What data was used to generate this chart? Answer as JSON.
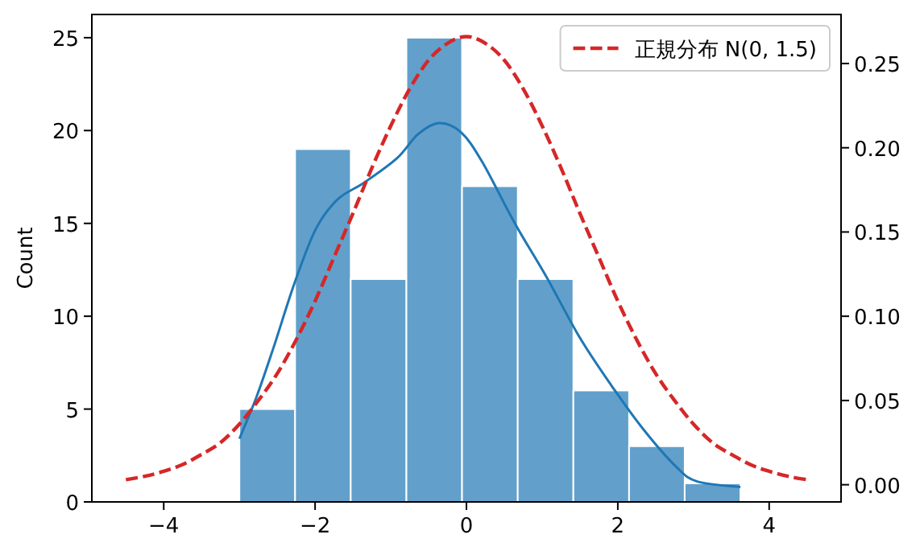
{
  "chart_data": {
    "type": "histogram",
    "ylabel": "Count",
    "bins": [
      -3.0,
      -2.264,
      -1.529,
      -0.793,
      -0.058,
      0.678,
      1.413,
      2.149,
      2.884,
      3.62
    ],
    "values": [
      5,
      19,
      12,
      25,
      17,
      12,
      6,
      3,
      1
    ],
    "color": "#62a0cb",
    "series": [
      {
        "type": "line",
        "color": "#1f77b4",
        "x": [
          -3.0,
          -2.77,
          -2.55,
          -2.27,
          -1.99,
          -1.7,
          -1.35,
          -0.92,
          -0.64,
          -0.36,
          -0.07,
          0.21,
          0.64,
          1.06,
          1.49,
          1.91,
          2.34,
          2.77,
          3.05,
          3.62
        ],
        "values": [
          3.4,
          5.7,
          8.3,
          11.8,
          14.7,
          16.3,
          17.2,
          18.5,
          19.8,
          20.4,
          19.9,
          18.3,
          15.0,
          12.1,
          8.9,
          6.3,
          3.9,
          1.9,
          1.1,
          0.8
        ]
      },
      {
        "type": "line",
        "name": "正規分布 N(0, 1.5)",
        "axis": "y2",
        "line_style": "dashed",
        "color": "#d62728",
        "x": [
          -4.5,
          -4.25,
          -4.0,
          -3.75,
          -3.5,
          -3.25,
          -3.0,
          -2.75,
          -2.5,
          -2.25,
          -2.0,
          -1.75,
          -1.5,
          -1.25,
          -1.0,
          -0.75,
          -0.5,
          -0.25,
          0.0,
          0.25,
          0.5,
          0.75,
          1.0,
          1.25,
          1.5,
          1.75,
          2.0,
          2.25,
          2.5,
          2.75,
          3.0,
          3.25,
          3.5,
          3.75,
          4.0,
          4.25,
          4.5
        ],
        "values": [
          0.003,
          0.005,
          0.008,
          0.012,
          0.018,
          0.025,
          0.036,
          0.05,
          0.066,
          0.086,
          0.109,
          0.135,
          0.161,
          0.188,
          0.213,
          0.235,
          0.252,
          0.262,
          0.266,
          0.262,
          0.252,
          0.235,
          0.213,
          0.188,
          0.161,
          0.135,
          0.109,
          0.086,
          0.066,
          0.05,
          0.036,
          0.025,
          0.018,
          0.012,
          0.008,
          0.005,
          0.003
        ]
      }
    ],
    "xlim": [
      -4.95,
      4.95
    ],
    "xticks": [
      -4,
      -2,
      0,
      2,
      4
    ],
    "ylim": [
      0,
      26.25
    ],
    "yticks": [
      0,
      5,
      10,
      15,
      20,
      25
    ],
    "y2lim": [
      -0.0102,
      0.2791
    ],
    "y2ticks": [
      {
        "value": 0,
        "label": "0.00"
      },
      {
        "value": 0.05,
        "label": "0.05"
      },
      {
        "value": 0.1,
        "label": "0.10"
      },
      {
        "value": 0.15,
        "label": "0.15"
      },
      {
        "value": 0.2,
        "label": "0.20"
      },
      {
        "value": 0.25,
        "label": "0.25"
      }
    ],
    "legend": "top right",
    "grid": false
  }
}
